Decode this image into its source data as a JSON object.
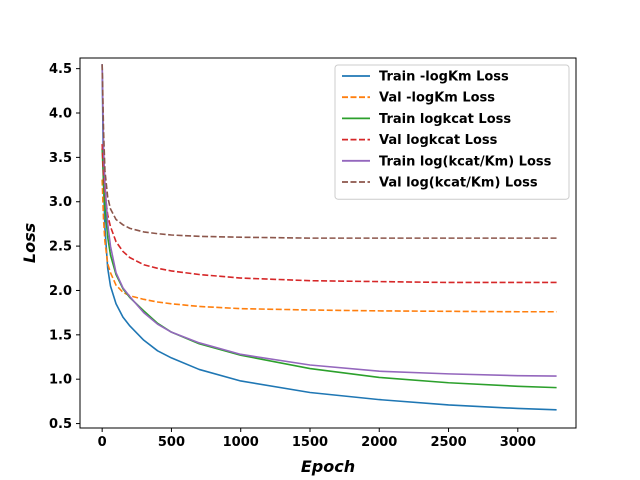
{
  "chart_data": {
    "type": "line",
    "title": "",
    "xlabel": "Epoch",
    "ylabel": "Loss",
    "xlim": [
      -160,
      3420
    ],
    "ylim": [
      0.45,
      4.62
    ],
    "xticks": [
      0,
      500,
      1000,
      1500,
      2000,
      2500,
      3000
    ],
    "yticks": [
      0.5,
      1.0,
      1.5,
      2.0,
      2.5,
      3.0,
      3.5,
      4.0,
      4.5
    ],
    "ytick_labels": [
      "0.5",
      "1.0",
      "1.5",
      "2.0",
      "2.5",
      "3.0",
      "3.5",
      "4.0",
      "4.5"
    ],
    "grid": false,
    "legend_position": "top-right",
    "series": [
      {
        "name": "Train -logKm Loss",
        "color": "#1f77b4",
        "style": "solid",
        "x": [
          0,
          10,
          20,
          40,
          60,
          100,
          150,
          200,
          300,
          400,
          500,
          700,
          1000,
          1500,
          2000,
          2500,
          3000,
          3280
        ],
        "y": [
          4.55,
          3.2,
          2.7,
          2.25,
          2.05,
          1.85,
          1.7,
          1.6,
          1.44,
          1.32,
          1.24,
          1.11,
          0.98,
          0.85,
          0.77,
          0.71,
          0.67,
          0.655
        ]
      },
      {
        "name": "Val -logKm Loss",
        "color": "#ff7f0e",
        "style": "dashed",
        "x": [
          0,
          10,
          20,
          40,
          60,
          100,
          150,
          200,
          300,
          400,
          500,
          700,
          1000,
          1500,
          2000,
          2500,
          3000,
          3280
        ],
        "y": [
          3.25,
          2.8,
          2.55,
          2.3,
          2.2,
          2.06,
          1.98,
          1.94,
          1.9,
          1.87,
          1.85,
          1.82,
          1.795,
          1.78,
          1.77,
          1.765,
          1.76,
          1.76
        ]
      },
      {
        "name": "Train logkcat Loss",
        "color": "#2ca02c",
        "style": "solid",
        "x": [
          0,
          10,
          20,
          40,
          60,
          100,
          150,
          200,
          300,
          400,
          500,
          700,
          1000,
          1500,
          2000,
          2500,
          3000,
          3280
        ],
        "y": [
          3.6,
          3.2,
          2.95,
          2.6,
          2.4,
          2.18,
          2.02,
          1.92,
          1.77,
          1.63,
          1.53,
          1.4,
          1.27,
          1.12,
          1.02,
          0.96,
          0.92,
          0.905
        ]
      },
      {
        "name": "Val logkcat Loss",
        "color": "#d62728",
        "style": "dashed",
        "x": [
          0,
          10,
          20,
          40,
          60,
          100,
          150,
          200,
          300,
          400,
          500,
          700,
          1000,
          1500,
          2000,
          2500,
          3000,
          3280
        ],
        "y": [
          3.65,
          3.3,
          3.1,
          2.85,
          2.72,
          2.55,
          2.44,
          2.37,
          2.29,
          2.25,
          2.22,
          2.18,
          2.14,
          2.11,
          2.1,
          2.09,
          2.09,
          2.09
        ]
      },
      {
        "name": "Train log(kcat/Km) Loss",
        "color": "#9467bd",
        "style": "solid",
        "x": [
          0,
          10,
          20,
          40,
          60,
          100,
          150,
          200,
          300,
          400,
          500,
          700,
          1000,
          1500,
          2000,
          2500,
          3000,
          3280
        ],
        "y": [
          4.55,
          3.6,
          3.2,
          2.75,
          2.5,
          2.2,
          2.03,
          1.93,
          1.75,
          1.62,
          1.53,
          1.41,
          1.28,
          1.16,
          1.09,
          1.06,
          1.04,
          1.035
        ]
      },
      {
        "name": "Val log(kcat/Km) Loss",
        "color": "#8c564b",
        "style": "dashed",
        "x": [
          0,
          10,
          20,
          40,
          60,
          100,
          150,
          200,
          300,
          400,
          500,
          700,
          1000,
          1500,
          2000,
          2500,
          3000,
          3280
        ],
        "y": [
          4.55,
          3.8,
          3.35,
          3.05,
          2.92,
          2.8,
          2.74,
          2.7,
          2.66,
          2.64,
          2.625,
          2.61,
          2.6,
          2.59,
          2.59,
          2.59,
          2.59,
          2.59
        ]
      }
    ]
  }
}
